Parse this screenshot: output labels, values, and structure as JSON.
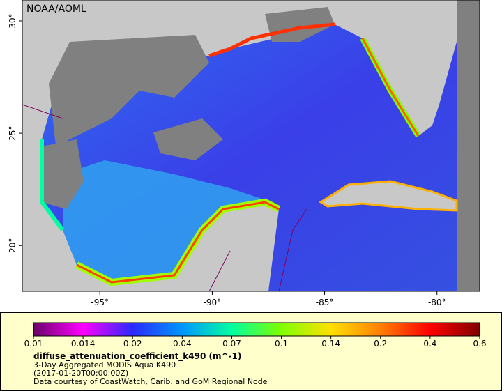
{
  "map": {
    "credit": "NOAA/AOML",
    "xlim": [
      -98.45,
      -78.1
    ],
    "ylim": [
      17.96,
      30.93
    ],
    "lon_ticks": [
      {
        "value": -95,
        "label": "-95°"
      },
      {
        "value": -90,
        "label": "-90°"
      },
      {
        "value": -85,
        "label": "-85°"
      },
      {
        "value": -80,
        "label": "-80°"
      }
    ],
    "lat_ticks": [
      {
        "value": 30,
        "label": "30°"
      },
      {
        "value": 25,
        "label": "25°"
      },
      {
        "value": 20,
        "label": "20°"
      }
    ]
  },
  "legend": {
    "ticks": [
      "0.01",
      "0.014",
      "0.02",
      "0.04",
      "0.07",
      "0.1",
      "0.14",
      "0.2",
      "0.4",
      "0.6"
    ],
    "colors": [
      "#6a006a",
      "#ff00ff",
      "#2a2aff",
      "#0096ff",
      "#00ffa0",
      "#80ff00",
      "#ffe000",
      "#ff8000",
      "#ff0000",
      "#800000"
    ],
    "title": "diffuse_attenuation_coefficient_k490 (m^-1)",
    "lines": [
      "3-Day Aggregated MODIS Aqua K490",
      "(2017-01-20T00:00:00Z)",
      "Data courtesy of CoastWatch, Carib. and GoM Regional Node"
    ]
  }
}
